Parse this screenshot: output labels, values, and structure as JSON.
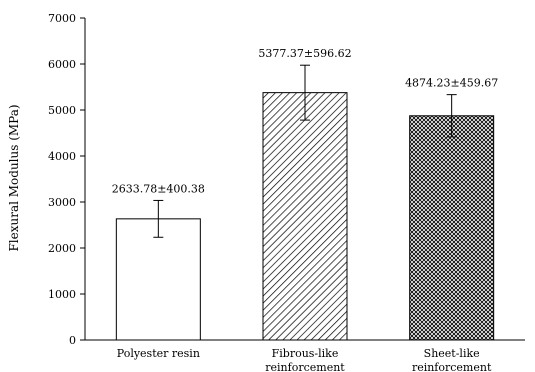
{
  "chart_data": {
    "type": "bar",
    "title": "",
    "xlabel": "",
    "ylabel": "Flexural Modulus (MPa)",
    "ylim": [
      0,
      7000
    ],
    "yticks": [
      0,
      1000,
      2000,
      3000,
      4000,
      5000,
      6000,
      7000
    ],
    "grid": false,
    "legend": "none",
    "categories": [
      [
        "Polyester resin"
      ],
      [
        "Fibrous-like",
        "reinforcement"
      ],
      [
        "Sheet-like",
        "reinforcement"
      ]
    ],
    "values": [
      2633.78,
      5377.37,
      4874.23
    ],
    "errors": [
      400.38,
      596.62,
      459.67
    ],
    "data_labels": [
      "2633.78±400.38",
      "5377.37±596.62",
      "4874.23±459.67"
    ],
    "fills": [
      "none",
      "diagonal-hatch",
      "crosshatch"
    ],
    "colors": {
      "bar_stroke": "#000000",
      "pattern": "#000000",
      "background": "#ffffff"
    }
  }
}
